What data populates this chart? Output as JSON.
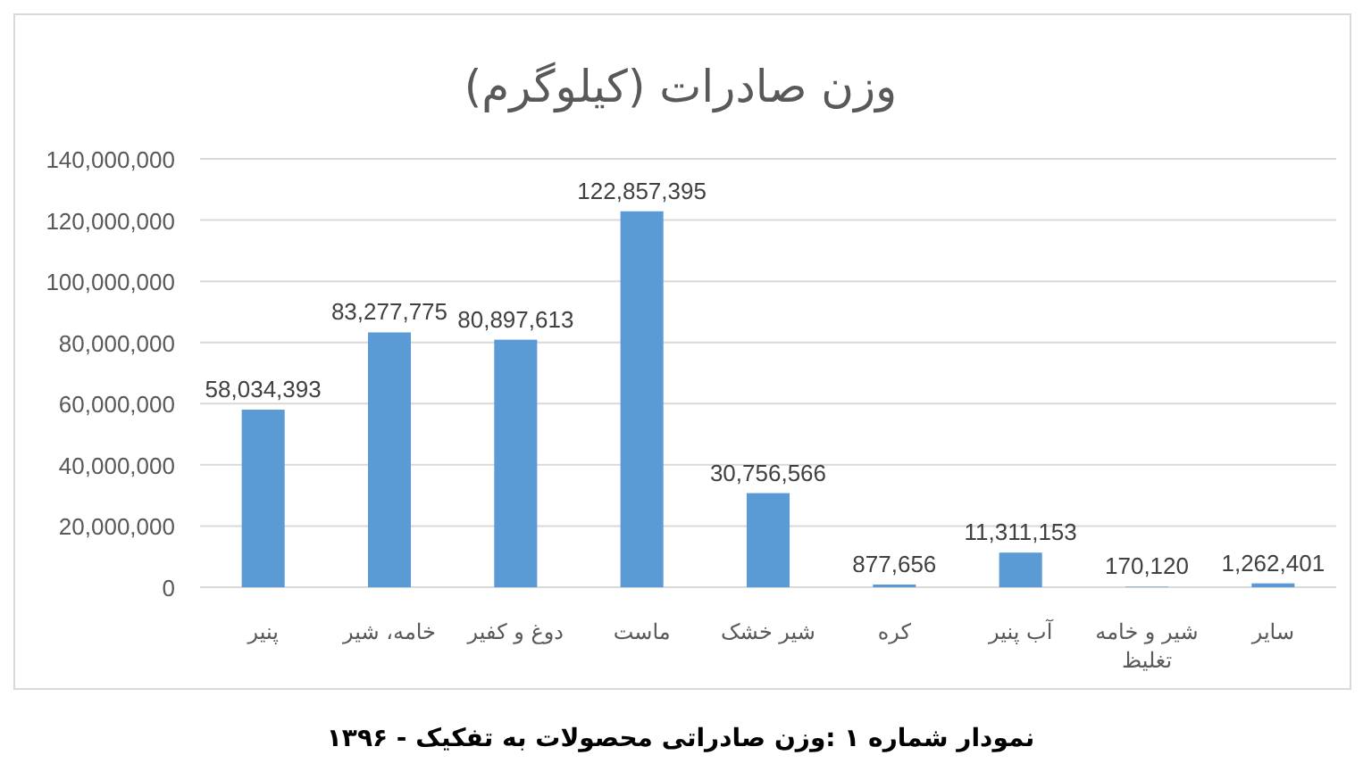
{
  "chart_data": {
    "type": "bar",
    "title": "وزن صادرات (کیلوگرم)",
    "categories": [
      "پنیر",
      "خامه، شیر",
      "دوغ و کفیر",
      "ماست",
      "شیر خشک",
      "کره",
      "آب پنیر",
      "شیر و خامه تغلیظ",
      "سایر"
    ],
    "values": [
      58034393,
      83277775,
      80897613,
      122857395,
      30756566,
      877656,
      11311153,
      170120,
      1262401
    ],
    "color": "#5b9bd5",
    "ylim": [
      0,
      140000000
    ],
    "yticks": [
      {
        "value": 0,
        "label": "0"
      },
      {
        "value": 20000000,
        "label": "20,000,000"
      },
      {
        "value": 40000000,
        "label": "40,000,000"
      },
      {
        "value": 60000000,
        "label": "60,000,000"
      },
      {
        "value": 80000000,
        "label": "80,000,000"
      },
      {
        "value": 100000000,
        "label": "100,000,000"
      },
      {
        "value": 120000000,
        "label": "120,000,000"
      },
      {
        "value": 140000000,
        "label": "140,000,000"
      }
    ],
    "grid": "y",
    "value_labels": [
      "58,034,393",
      "83,277,775",
      "80,897,613",
      "122,857,395",
      "30,756,566",
      "877,656",
      "11,311,153",
      "170,120",
      "1,262,401"
    ],
    "annotations": [
      "نمودار شماره ۱ :وزن صادراتی محصولات به تفکیک - ۱۳۹۶"
    ]
  }
}
